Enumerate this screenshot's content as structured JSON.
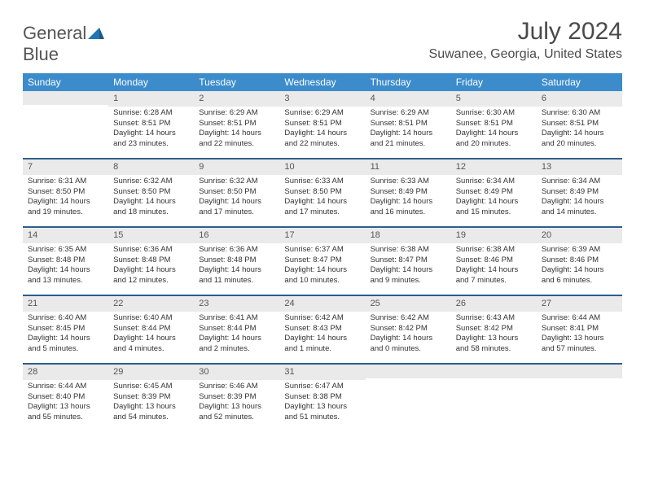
{
  "logo": {
    "text1": "General",
    "text2": "Blue"
  },
  "title": "July 2024",
  "subtitle": "Suwanee, Georgia, United States",
  "colors": {
    "header_bg": "#3c8ccc",
    "header_text": "#ffffff",
    "daynum_bg": "#eaeaea",
    "week_border": "#2d5e8c",
    "logo_gray": "#555555",
    "logo_blue": "#2176b5",
    "title_color": "#4a4a4a"
  },
  "day_names": [
    "Sunday",
    "Monday",
    "Tuesday",
    "Wednesday",
    "Thursday",
    "Friday",
    "Saturday"
  ],
  "weeks": [
    [
      {
        "n": "",
        "sunrise": "",
        "sunset": "",
        "daylight": ""
      },
      {
        "n": "1",
        "sunrise": "Sunrise: 6:28 AM",
        "sunset": "Sunset: 8:51 PM",
        "daylight": "Daylight: 14 hours and 23 minutes."
      },
      {
        "n": "2",
        "sunrise": "Sunrise: 6:29 AM",
        "sunset": "Sunset: 8:51 PM",
        "daylight": "Daylight: 14 hours and 22 minutes."
      },
      {
        "n": "3",
        "sunrise": "Sunrise: 6:29 AM",
        "sunset": "Sunset: 8:51 PM",
        "daylight": "Daylight: 14 hours and 22 minutes."
      },
      {
        "n": "4",
        "sunrise": "Sunrise: 6:29 AM",
        "sunset": "Sunset: 8:51 PM",
        "daylight": "Daylight: 14 hours and 21 minutes."
      },
      {
        "n": "5",
        "sunrise": "Sunrise: 6:30 AM",
        "sunset": "Sunset: 8:51 PM",
        "daylight": "Daylight: 14 hours and 20 minutes."
      },
      {
        "n": "6",
        "sunrise": "Sunrise: 6:30 AM",
        "sunset": "Sunset: 8:51 PM",
        "daylight": "Daylight: 14 hours and 20 minutes."
      }
    ],
    [
      {
        "n": "7",
        "sunrise": "Sunrise: 6:31 AM",
        "sunset": "Sunset: 8:50 PM",
        "daylight": "Daylight: 14 hours and 19 minutes."
      },
      {
        "n": "8",
        "sunrise": "Sunrise: 6:32 AM",
        "sunset": "Sunset: 8:50 PM",
        "daylight": "Daylight: 14 hours and 18 minutes."
      },
      {
        "n": "9",
        "sunrise": "Sunrise: 6:32 AM",
        "sunset": "Sunset: 8:50 PM",
        "daylight": "Daylight: 14 hours and 17 minutes."
      },
      {
        "n": "10",
        "sunrise": "Sunrise: 6:33 AM",
        "sunset": "Sunset: 8:50 PM",
        "daylight": "Daylight: 14 hours and 17 minutes."
      },
      {
        "n": "11",
        "sunrise": "Sunrise: 6:33 AM",
        "sunset": "Sunset: 8:49 PM",
        "daylight": "Daylight: 14 hours and 16 minutes."
      },
      {
        "n": "12",
        "sunrise": "Sunrise: 6:34 AM",
        "sunset": "Sunset: 8:49 PM",
        "daylight": "Daylight: 14 hours and 15 minutes."
      },
      {
        "n": "13",
        "sunrise": "Sunrise: 6:34 AM",
        "sunset": "Sunset: 8:49 PM",
        "daylight": "Daylight: 14 hours and 14 minutes."
      }
    ],
    [
      {
        "n": "14",
        "sunrise": "Sunrise: 6:35 AM",
        "sunset": "Sunset: 8:48 PM",
        "daylight": "Daylight: 14 hours and 13 minutes."
      },
      {
        "n": "15",
        "sunrise": "Sunrise: 6:36 AM",
        "sunset": "Sunset: 8:48 PM",
        "daylight": "Daylight: 14 hours and 12 minutes."
      },
      {
        "n": "16",
        "sunrise": "Sunrise: 6:36 AM",
        "sunset": "Sunset: 8:48 PM",
        "daylight": "Daylight: 14 hours and 11 minutes."
      },
      {
        "n": "17",
        "sunrise": "Sunrise: 6:37 AM",
        "sunset": "Sunset: 8:47 PM",
        "daylight": "Daylight: 14 hours and 10 minutes."
      },
      {
        "n": "18",
        "sunrise": "Sunrise: 6:38 AM",
        "sunset": "Sunset: 8:47 PM",
        "daylight": "Daylight: 14 hours and 9 minutes."
      },
      {
        "n": "19",
        "sunrise": "Sunrise: 6:38 AM",
        "sunset": "Sunset: 8:46 PM",
        "daylight": "Daylight: 14 hours and 7 minutes."
      },
      {
        "n": "20",
        "sunrise": "Sunrise: 6:39 AM",
        "sunset": "Sunset: 8:46 PM",
        "daylight": "Daylight: 14 hours and 6 minutes."
      }
    ],
    [
      {
        "n": "21",
        "sunrise": "Sunrise: 6:40 AM",
        "sunset": "Sunset: 8:45 PM",
        "daylight": "Daylight: 14 hours and 5 minutes."
      },
      {
        "n": "22",
        "sunrise": "Sunrise: 6:40 AM",
        "sunset": "Sunset: 8:44 PM",
        "daylight": "Daylight: 14 hours and 4 minutes."
      },
      {
        "n": "23",
        "sunrise": "Sunrise: 6:41 AM",
        "sunset": "Sunset: 8:44 PM",
        "daylight": "Daylight: 14 hours and 2 minutes."
      },
      {
        "n": "24",
        "sunrise": "Sunrise: 6:42 AM",
        "sunset": "Sunset: 8:43 PM",
        "daylight": "Daylight: 14 hours and 1 minute."
      },
      {
        "n": "25",
        "sunrise": "Sunrise: 6:42 AM",
        "sunset": "Sunset: 8:42 PM",
        "daylight": "Daylight: 14 hours and 0 minutes."
      },
      {
        "n": "26",
        "sunrise": "Sunrise: 6:43 AM",
        "sunset": "Sunset: 8:42 PM",
        "daylight": "Daylight: 13 hours and 58 minutes."
      },
      {
        "n": "27",
        "sunrise": "Sunrise: 6:44 AM",
        "sunset": "Sunset: 8:41 PM",
        "daylight": "Daylight: 13 hours and 57 minutes."
      }
    ],
    [
      {
        "n": "28",
        "sunrise": "Sunrise: 6:44 AM",
        "sunset": "Sunset: 8:40 PM",
        "daylight": "Daylight: 13 hours and 55 minutes."
      },
      {
        "n": "29",
        "sunrise": "Sunrise: 6:45 AM",
        "sunset": "Sunset: 8:39 PM",
        "daylight": "Daylight: 13 hours and 54 minutes."
      },
      {
        "n": "30",
        "sunrise": "Sunrise: 6:46 AM",
        "sunset": "Sunset: 8:39 PM",
        "daylight": "Daylight: 13 hours and 52 minutes."
      },
      {
        "n": "31",
        "sunrise": "Sunrise: 6:47 AM",
        "sunset": "Sunset: 8:38 PM",
        "daylight": "Daylight: 13 hours and 51 minutes."
      },
      {
        "n": "",
        "sunrise": "",
        "sunset": "",
        "daylight": ""
      },
      {
        "n": "",
        "sunrise": "",
        "sunset": "",
        "daylight": ""
      },
      {
        "n": "",
        "sunrise": "",
        "sunset": "",
        "daylight": ""
      }
    ]
  ]
}
